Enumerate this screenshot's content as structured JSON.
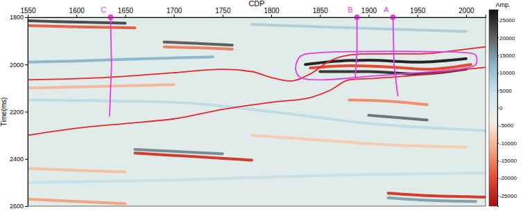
{
  "chart_data": {
    "type": "seismic_section",
    "x_label": "CDP",
    "y_label": "Time(ms)",
    "xlim": [
      1550,
      2020
    ],
    "ylim": [
      1800,
      2600
    ],
    "xticks": [
      1550,
      1600,
      1650,
      1700,
      1750,
      1800,
      1850,
      1900,
      1950,
      2000
    ],
    "yticks": [
      1800,
      2000,
      2200,
      2400,
      2600
    ],
    "colorbar": {
      "label": "Amp.",
      "range": [
        -28000,
        28000
      ],
      "ticks": [
        25000,
        20000,
        15000,
        10000,
        5000,
        0,
        -5000,
        -10000,
        -15000,
        -20000,
        -25000
      ],
      "colors": [
        "#a50f15",
        "#e34a33",
        "#f4a582",
        "#f3f0e4",
        "#cfe6ee",
        "#8fb8cc",
        "#606060",
        "#101010"
      ]
    },
    "reflectors": [
      {
        "x": [
          1550,
          1580,
          1620,
          1650
        ],
        "y": [
          1815,
          1818,
          1822,
          1825
        ],
        "amplitude": 22000
      },
      {
        "x": [
          1550,
          1600,
          1660
        ],
        "y": [
          1835,
          1840,
          1845
        ],
        "amplitude": -18000
      },
      {
        "x": [
          1690,
          1720,
          1760
        ],
        "y": [
          1905,
          1910,
          1918
        ],
        "amplitude": 20000
      },
      {
        "x": [
          1690,
          1730,
          1760
        ],
        "y": [
          1925,
          1930,
          1935
        ],
        "amplitude": -15000
      },
      {
        "x": [
          1550,
          1600,
          1650,
          1700,
          1740
        ],
        "y": [
          1990,
          1985,
          1978,
          1972,
          1968
        ],
        "amplitude": 12000
      },
      {
        "x": [
          1835,
          1870,
          1900,
          1950,
          2000
        ],
        "y": [
          2000,
          1985,
          1982,
          1990,
          1975
        ],
        "amplitude": 26000
      },
      {
        "x": [
          1840,
          1880,
          1920,
          1960,
          2005
        ],
        "y": [
          2015,
          2005,
          2010,
          2020,
          2000
        ],
        "amplitude": -20000
      },
      {
        "x": [
          1850,
          1900,
          1950,
          2000
        ],
        "y": [
          2030,
          2030,
          2040,
          2020
        ],
        "amplitude": 24000
      },
      {
        "x": [
          1880,
          1920,
          1960
        ],
        "y": [
          2150,
          2155,
          2170
        ],
        "amplitude": -14000
      },
      {
        "x": [
          1900,
          1930,
          1960
        ],
        "y": [
          2215,
          2225,
          2235
        ],
        "amplitude": 18000
      },
      {
        "x": [
          1550,
          1600,
          1650,
          1700
        ],
        "y": [
          2100,
          2095,
          2090,
          2085
        ],
        "amplitude": -10000
      },
      {
        "x": [
          1660,
          1700,
          1740,
          1780
        ],
        "y": [
          2375,
          2385,
          2395,
          2405
        ],
        "amplitude": -22000
      },
      {
        "x": [
          1660,
          1700,
          1750
        ],
        "y": [
          2360,
          2368,
          2378
        ],
        "amplitude": 16000
      },
      {
        "x": [
          1550,
          1600,
          1650
        ],
        "y": [
          2440,
          2448,
          2455
        ],
        "amplitude": -9000
      },
      {
        "x": [
          1920,
          1960,
          2000,
          2020
        ],
        "y": [
          2545,
          2555,
          2560,
          2562
        ],
        "amplitude": -22000
      },
      {
        "x": [
          1920,
          1960,
          2010
        ],
        "y": [
          2565,
          2575,
          2580
        ],
        "amplitude": 14000
      },
      {
        "x": [
          1550,
          1600,
          1650
        ],
        "y": [
          2570,
          2580,
          2590
        ],
        "amplitude": -12000
      },
      {
        "x": [
          1550,
          1700,
          1800,
          1900,
          2020
        ],
        "y": [
          2150,
          2160,
          2200,
          2250,
          2280
        ],
        "amplitude": 6000
      },
      {
        "x": [
          1550,
          1700,
          1850,
          2020
        ],
        "y": [
          2500,
          2490,
          2470,
          2460
        ],
        "amplitude": 5000
      },
      {
        "x": [
          1780,
          1850,
          1920,
          2000
        ],
        "y": [
          2300,
          2320,
          2340,
          2350
        ],
        "amplitude": -8000
      },
      {
        "x": [
          1780,
          1850,
          1920,
          2000
        ],
        "y": [
          1830,
          1840,
          1850,
          1860
        ],
        "amplitude": 8000
      }
    ],
    "horizons": [
      {
        "color": "#e8242c",
        "x": [
          1550,
          1600,
          1650,
          1700,
          1750,
          1780,
          1800,
          1820,
          1840,
          1860,
          1880,
          1900,
          1950,
          2000,
          2020
        ],
        "y": [
          2065,
          2060,
          2050,
          2035,
          2020,
          2030,
          2055,
          2070,
          2040,
          1985,
          1960,
          1955,
          1955,
          1935,
          1925
        ]
      },
      {
        "color": "#e8242c",
        "x": [
          1550,
          1600,
          1650,
          1700,
          1750,
          1800,
          1840,
          1860,
          1880,
          1900,
          1950,
          2000,
          2020
        ],
        "y": [
          2300,
          2270,
          2250,
          2230,
          2190,
          2160,
          2140,
          2110,
          2065,
          2060,
          2045,
          2020,
          2012
        ]
      }
    ],
    "outline": {
      "color": "#e040e0",
      "x": [
        1830,
        1850,
        1900,
        1950,
        2000,
        2010,
        2010,
        2000,
        1950,
        1900,
        1850,
        1830,
        1825,
        1830
      ],
      "y": [
        1965,
        1950,
        1945,
        1945,
        1950,
        1960,
        2000,
        2015,
        2035,
        2050,
        2065,
        2055,
        2020,
        1965
      ]
    },
    "wells": [
      {
        "label": "C",
        "color": "#e83adf",
        "x": [
          1635,
          1636,
          1634
        ],
        "y": [
          1800,
          2000,
          2220
        ]
      },
      {
        "label": "B",
        "color": "#e83adf",
        "x": [
          1888,
          1888,
          1886
        ],
        "y": [
          1800,
          1950,
          2065
        ]
      },
      {
        "label": "A",
        "color": "#e83adf",
        "x": [
          1925,
          1926,
          1930
        ],
        "y": [
          1800,
          2000,
          2135
        ]
      }
    ]
  }
}
